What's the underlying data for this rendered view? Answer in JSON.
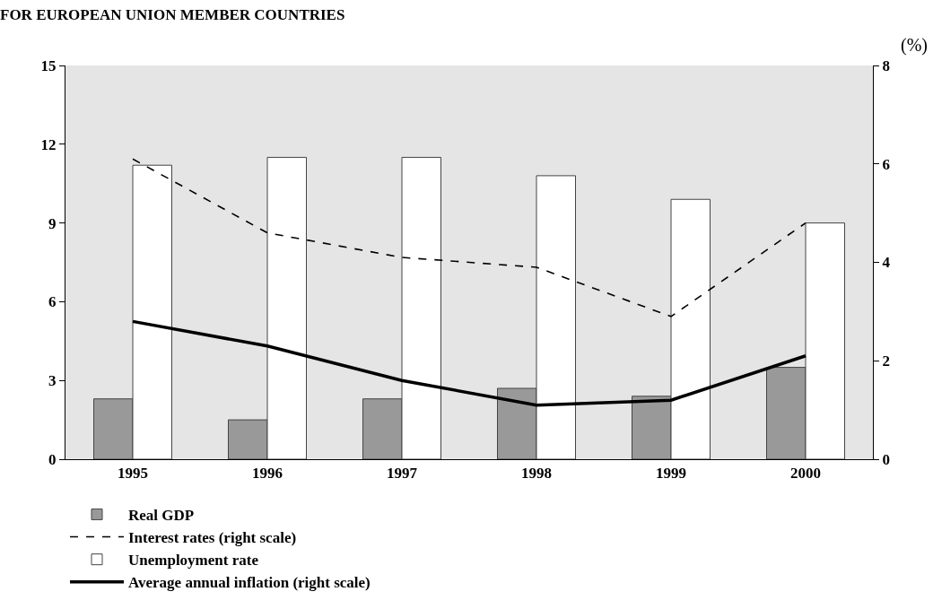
{
  "chart_data": {
    "type": "bar",
    "title": "FOR EUROPEAN UNION MEMBER COUNTRIES",
    "annotations": [
      "(%)"
    ],
    "categories": [
      "1995",
      "1996",
      "1997",
      "1998",
      "1999",
      "2000"
    ],
    "series": [
      {
        "name": "Real GDP",
        "color": "#999999",
        "values": [
          2.3,
          1.5,
          2.3,
          2.7,
          2.4,
          3.5
        ]
      },
      {
        "name": "Unemployment rate",
        "color": "#ffffff",
        "values": [
          11.2,
          11.5,
          11.5,
          10.8,
          9.9,
          9.0
        ]
      },
      {
        "name": "Interest rates (right scale)",
        "type": "line",
        "axis": "y2",
        "line_style": "dashed",
        "color": "#000000",
        "values": [
          6.1,
          4.6,
          4.1,
          3.9,
          2.9,
          4.8
        ]
      },
      {
        "name": "Average annual inflation (right scale)",
        "type": "line",
        "axis": "y2",
        "line_style": "solid",
        "color": "#000000",
        "values": [
          2.8,
          2.3,
          1.6,
          1.1,
          1.2,
          2.1
        ]
      }
    ],
    "ylim": [
      0,
      15
    ],
    "yticks": [
      0,
      3,
      6,
      9,
      12,
      15
    ],
    "y2lim": [
      0,
      8
    ],
    "y2ticks": [
      0,
      2,
      4,
      6,
      8
    ],
    "grid": false,
    "legend": "bottom",
    "marker": "none"
  }
}
